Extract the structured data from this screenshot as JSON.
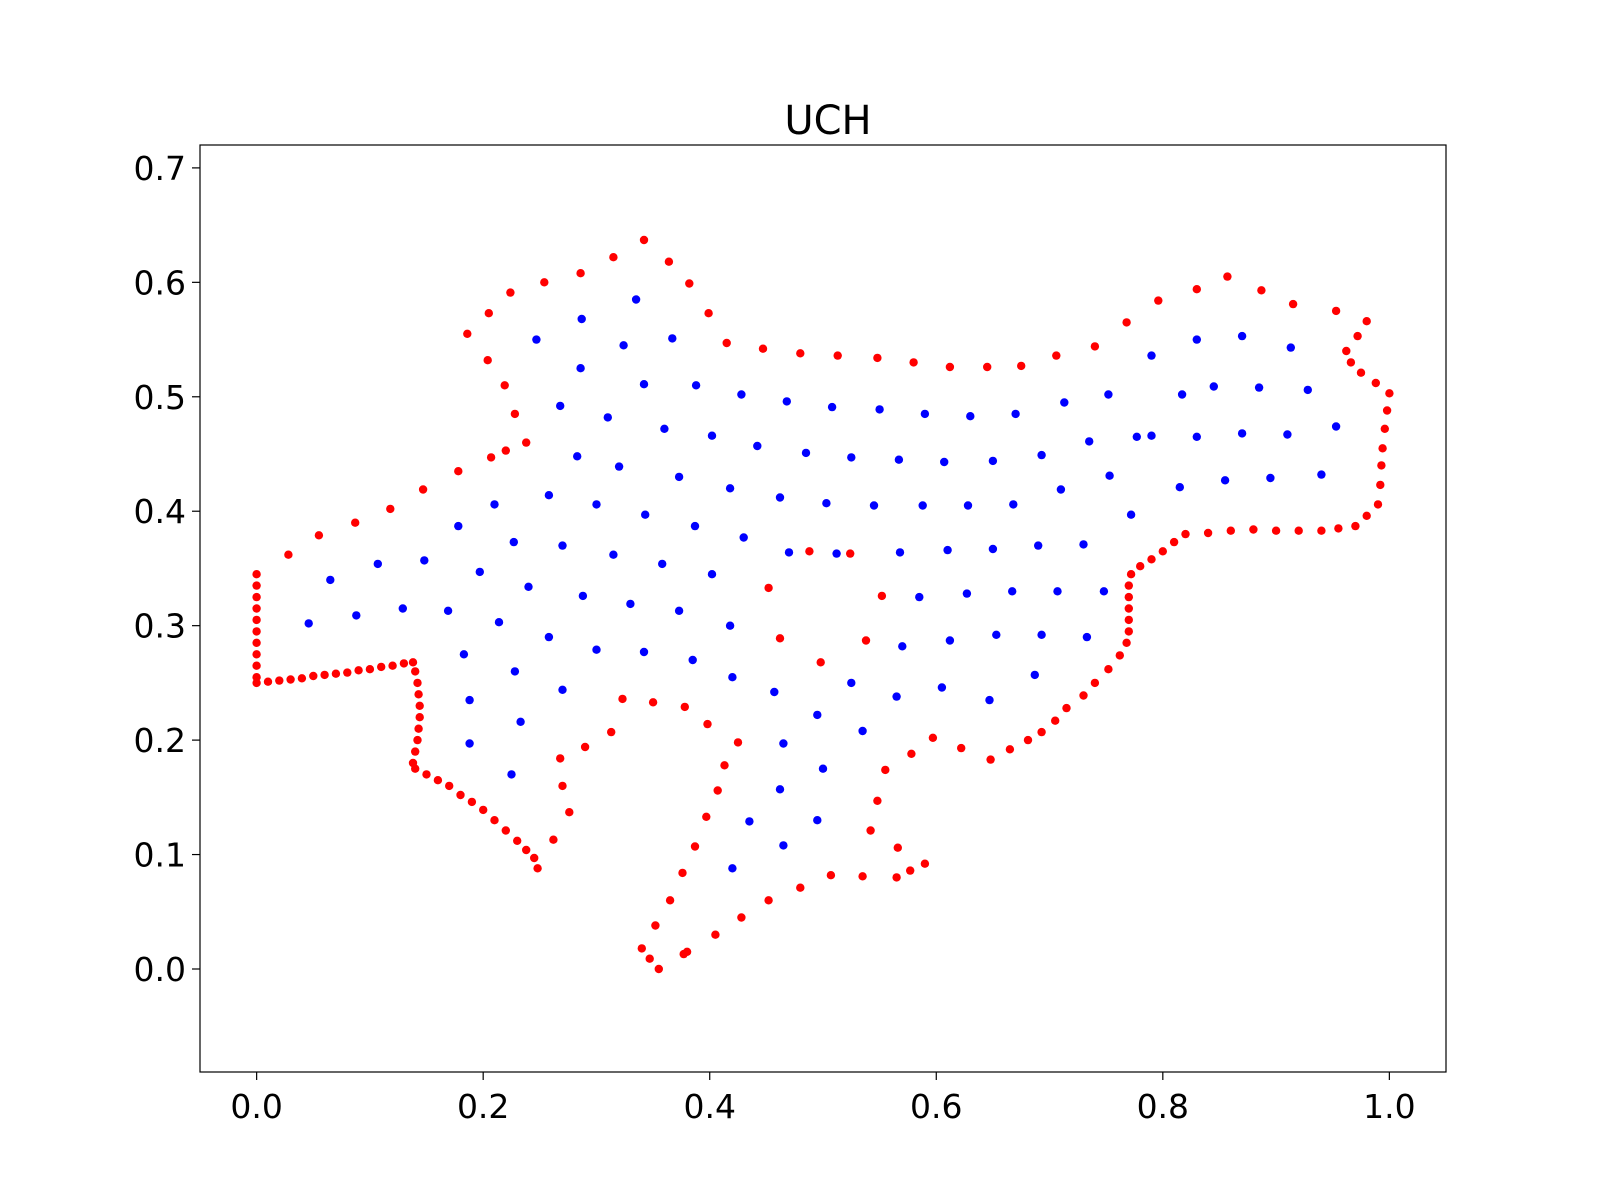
{
  "chart_data": {
    "type": "scatter",
    "title": "UCH",
    "xlabel": "",
    "ylabel": "",
    "xlim": [
      -0.05,
      1.05
    ],
    "ylim": [
      -0.09,
      0.72
    ],
    "xticks": [
      "0.0",
      "0.2",
      "0.4",
      "0.6",
      "0.8",
      "1.0"
    ],
    "yticks": [
      "0.0",
      "0.1",
      "0.2",
      "0.3",
      "0.4",
      "0.5",
      "0.6",
      "0.7"
    ],
    "grid": false,
    "legend": "none",
    "series": [
      {
        "color": "#ff0000",
        "points": [
          [
            0.0,
            0.345
          ],
          [
            0.0,
            0.335
          ],
          [
            0.0,
            0.325
          ],
          [
            0.0,
            0.315
          ],
          [
            0.0,
            0.305
          ],
          [
            0.0,
            0.295
          ],
          [
            0.0,
            0.285
          ],
          [
            0.0,
            0.275
          ],
          [
            0.0,
            0.265
          ],
          [
            0.0,
            0.255
          ],
          [
            0.0,
            0.25
          ],
          [
            0.01,
            0.251
          ],
          [
            0.02,
            0.252
          ],
          [
            0.03,
            0.253
          ],
          [
            0.04,
            0.254
          ],
          [
            0.05,
            0.256
          ],
          [
            0.06,
            0.257
          ],
          [
            0.07,
            0.258
          ],
          [
            0.08,
            0.259
          ],
          [
            0.09,
            0.261
          ],
          [
            0.1,
            0.262
          ],
          [
            0.11,
            0.264
          ],
          [
            0.12,
            0.265
          ],
          [
            0.13,
            0.267
          ],
          [
            0.138,
            0.268
          ],
          [
            0.14,
            0.26
          ],
          [
            0.142,
            0.25
          ],
          [
            0.143,
            0.24
          ],
          [
            0.144,
            0.23
          ],
          [
            0.144,
            0.22
          ],
          [
            0.143,
            0.21
          ],
          [
            0.142,
            0.2
          ],
          [
            0.14,
            0.19
          ],
          [
            0.138,
            0.18
          ],
          [
            0.14,
            0.175
          ],
          [
            0.15,
            0.17
          ],
          [
            0.16,
            0.165
          ],
          [
            0.17,
            0.16
          ],
          [
            0.18,
            0.152
          ],
          [
            0.19,
            0.146
          ],
          [
            0.2,
            0.139
          ],
          [
            0.21,
            0.13
          ],
          [
            0.22,
            0.121
          ],
          [
            0.23,
            0.112
          ],
          [
            0.238,
            0.104
          ],
          [
            0.245,
            0.097
          ],
          [
            0.248,
            0.088
          ],
          [
            0.028,
            0.362
          ],
          [
            0.055,
            0.379
          ],
          [
            0.087,
            0.39
          ],
          [
            0.118,
            0.402
          ],
          [
            0.147,
            0.419
          ],
          [
            0.178,
            0.435
          ],
          [
            0.207,
            0.447
          ],
          [
            0.22,
            0.453
          ],
          [
            0.238,
            0.46
          ],
          [
            0.228,
            0.485
          ],
          [
            0.219,
            0.51
          ],
          [
            0.204,
            0.532
          ],
          [
            0.186,
            0.555
          ],
          [
            0.205,
            0.573
          ],
          [
            0.224,
            0.591
          ],
          [
            0.254,
            0.6
          ],
          [
            0.286,
            0.608
          ],
          [
            0.315,
            0.622
          ],
          [
            0.342,
            0.637
          ],
          [
            0.364,
            0.618
          ],
          [
            0.382,
            0.599
          ],
          [
            0.399,
            0.573
          ],
          [
            0.415,
            0.547
          ],
          [
            0.447,
            0.542
          ],
          [
            0.48,
            0.538
          ],
          [
            0.513,
            0.536
          ],
          [
            0.548,
            0.534
          ],
          [
            0.58,
            0.53
          ],
          [
            0.612,
            0.526
          ],
          [
            0.645,
            0.526
          ],
          [
            0.675,
            0.527
          ],
          [
            0.706,
            0.536
          ],
          [
            0.74,
            0.544
          ],
          [
            0.768,
            0.565
          ],
          [
            0.796,
            0.584
          ],
          [
            0.83,
            0.594
          ],
          [
            0.857,
            0.605
          ],
          [
            0.887,
            0.593
          ],
          [
            0.915,
            0.581
          ],
          [
            0.953,
            0.575
          ],
          [
            0.98,
            0.566
          ],
          [
            0.972,
            0.553
          ],
          [
            0.962,
            0.54
          ],
          [
            0.966,
            0.53
          ],
          [
            0.975,
            0.521
          ],
          [
            0.988,
            0.512
          ],
          [
            1.0,
            0.503
          ],
          [
            0.998,
            0.488
          ],
          [
            0.996,
            0.472
          ],
          [
            0.994,
            0.455
          ],
          [
            0.993,
            0.44
          ],
          [
            0.992,
            0.423
          ],
          [
            0.99,
            0.406
          ],
          [
            0.98,
            0.396
          ],
          [
            0.97,
            0.387
          ],
          [
            0.955,
            0.385
          ],
          [
            0.94,
            0.383
          ],
          [
            0.92,
            0.383
          ],
          [
            0.9,
            0.383
          ],
          [
            0.88,
            0.384
          ],
          [
            0.86,
            0.383
          ],
          [
            0.84,
            0.381
          ],
          [
            0.82,
            0.38
          ],
          [
            0.81,
            0.373
          ],
          [
            0.8,
            0.365
          ],
          [
            0.79,
            0.358
          ],
          [
            0.78,
            0.352
          ],
          [
            0.772,
            0.345
          ],
          [
            0.77,
            0.335
          ],
          [
            0.77,
            0.325
          ],
          [
            0.77,
            0.315
          ],
          [
            0.77,
            0.305
          ],
          [
            0.77,
            0.295
          ],
          [
            0.768,
            0.285
          ],
          [
            0.762,
            0.274
          ],
          [
            0.752,
            0.262
          ],
          [
            0.74,
            0.25
          ],
          [
            0.73,
            0.239
          ],
          [
            0.715,
            0.228
          ],
          [
            0.705,
            0.217
          ],
          [
            0.693,
            0.207
          ],
          [
            0.681,
            0.2
          ],
          [
            0.665,
            0.192
          ],
          [
            0.648,
            0.183
          ],
          [
            0.622,
            0.193
          ],
          [
            0.597,
            0.202
          ],
          [
            0.578,
            0.188
          ],
          [
            0.555,
            0.174
          ],
          [
            0.548,
            0.147
          ],
          [
            0.542,
            0.121
          ],
          [
            0.566,
            0.106
          ],
          [
            0.577,
            0.086
          ],
          [
            0.59,
            0.092
          ],
          [
            0.565,
            0.08
          ],
          [
            0.535,
            0.081
          ],
          [
            0.507,
            0.082
          ],
          [
            0.48,
            0.071
          ],
          [
            0.452,
            0.06
          ],
          [
            0.428,
            0.045
          ],
          [
            0.405,
            0.03
          ],
          [
            0.38,
            0.015
          ],
          [
            0.377,
            0.013
          ],
          [
            0.355,
            0.0
          ],
          [
            0.347,
            0.009
          ],
          [
            0.34,
            0.018
          ],
          [
            0.352,
            0.038
          ],
          [
            0.365,
            0.06
          ],
          [
            0.376,
            0.084
          ],
          [
            0.387,
            0.107
          ],
          [
            0.397,
            0.133
          ],
          [
            0.407,
            0.156
          ],
          [
            0.413,
            0.178
          ],
          [
            0.425,
            0.198
          ],
          [
            0.398,
            0.214
          ],
          [
            0.378,
            0.229
          ],
          [
            0.35,
            0.233
          ],
          [
            0.323,
            0.236
          ],
          [
            0.313,
            0.207
          ],
          [
            0.29,
            0.194
          ],
          [
            0.268,
            0.184
          ],
          [
            0.27,
            0.16
          ],
          [
            0.276,
            0.137
          ],
          [
            0.262,
            0.113
          ],
          [
            0.452,
            0.333
          ],
          [
            0.462,
            0.289
          ],
          [
            0.488,
            0.365
          ],
          [
            0.524,
            0.363
          ],
          [
            0.552,
            0.326
          ],
          [
            0.538,
            0.287
          ],
          [
            0.498,
            0.268
          ]
        ]
      },
      {
        "color": "#0000ff",
        "points": [
          [
            0.247,
            0.55
          ],
          [
            0.287,
            0.568
          ],
          [
            0.335,
            0.585
          ],
          [
            0.367,
            0.551
          ],
          [
            0.324,
            0.545
          ],
          [
            0.286,
            0.525
          ],
          [
            0.342,
            0.511
          ],
          [
            0.388,
            0.51
          ],
          [
            0.428,
            0.502
          ],
          [
            0.468,
            0.496
          ],
          [
            0.508,
            0.491
          ],
          [
            0.55,
            0.489
          ],
          [
            0.59,
            0.485
          ],
          [
            0.63,
            0.483
          ],
          [
            0.67,
            0.485
          ],
          [
            0.713,
            0.495
          ],
          [
            0.752,
            0.502
          ],
          [
            0.79,
            0.536
          ],
          [
            0.83,
            0.55
          ],
          [
            0.87,
            0.553
          ],
          [
            0.913,
            0.543
          ],
          [
            0.268,
            0.492
          ],
          [
            0.31,
            0.482
          ],
          [
            0.36,
            0.472
          ],
          [
            0.402,
            0.466
          ],
          [
            0.442,
            0.457
          ],
          [
            0.485,
            0.451
          ],
          [
            0.525,
            0.447
          ],
          [
            0.567,
            0.445
          ],
          [
            0.607,
            0.443
          ],
          [
            0.65,
            0.444
          ],
          [
            0.693,
            0.449
          ],
          [
            0.735,
            0.461
          ],
          [
            0.777,
            0.465
          ],
          [
            0.817,
            0.502
          ],
          [
            0.845,
            0.509
          ],
          [
            0.885,
            0.508
          ],
          [
            0.928,
            0.506
          ],
          [
            0.283,
            0.448
          ],
          [
            0.32,
            0.439
          ],
          [
            0.373,
            0.43
          ],
          [
            0.418,
            0.42
          ],
          [
            0.462,
            0.412
          ],
          [
            0.503,
            0.407
          ],
          [
            0.545,
            0.405
          ],
          [
            0.588,
            0.405
          ],
          [
            0.628,
            0.405
          ],
          [
            0.668,
            0.406
          ],
          [
            0.71,
            0.419
          ],
          [
            0.753,
            0.431
          ],
          [
            0.79,
            0.466
          ],
          [
            0.83,
            0.465
          ],
          [
            0.87,
            0.468
          ],
          [
            0.91,
            0.467
          ],
          [
            0.953,
            0.474
          ],
          [
            0.21,
            0.406
          ],
          [
            0.258,
            0.414
          ],
          [
            0.3,
            0.406
          ],
          [
            0.343,
            0.397
          ],
          [
            0.387,
            0.387
          ],
          [
            0.43,
            0.377
          ],
          [
            0.47,
            0.364
          ],
          [
            0.512,
            0.363
          ],
          [
            0.568,
            0.364
          ],
          [
            0.61,
            0.366
          ],
          [
            0.65,
            0.367
          ],
          [
            0.69,
            0.37
          ],
          [
            0.73,
            0.371
          ],
          [
            0.772,
            0.397
          ],
          [
            0.815,
            0.421
          ],
          [
            0.855,
            0.427
          ],
          [
            0.895,
            0.429
          ],
          [
            0.94,
            0.432
          ],
          [
            0.178,
            0.387
          ],
          [
            0.227,
            0.373
          ],
          [
            0.27,
            0.37
          ],
          [
            0.315,
            0.362
          ],
          [
            0.358,
            0.354
          ],
          [
            0.402,
            0.345
          ],
          [
            0.107,
            0.354
          ],
          [
            0.148,
            0.357
          ],
          [
            0.065,
            0.34
          ],
          [
            0.197,
            0.347
          ],
          [
            0.24,
            0.334
          ],
          [
            0.288,
            0.326
          ],
          [
            0.33,
            0.319
          ],
          [
            0.373,
            0.313
          ],
          [
            0.418,
            0.3
          ],
          [
            0.585,
            0.325
          ],
          [
            0.627,
            0.328
          ],
          [
            0.667,
            0.33
          ],
          [
            0.707,
            0.33
          ],
          [
            0.748,
            0.33
          ],
          [
            0.046,
            0.302
          ],
          [
            0.088,
            0.309
          ],
          [
            0.129,
            0.315
          ],
          [
            0.169,
            0.313
          ],
          [
            0.214,
            0.303
          ],
          [
            0.258,
            0.29
          ],
          [
            0.3,
            0.279
          ],
          [
            0.342,
            0.277
          ],
          [
            0.385,
            0.27
          ],
          [
            0.57,
            0.282
          ],
          [
            0.612,
            0.287
          ],
          [
            0.653,
            0.292
          ],
          [
            0.693,
            0.292
          ],
          [
            0.733,
            0.29
          ],
          [
            0.183,
            0.275
          ],
          [
            0.228,
            0.26
          ],
          [
            0.27,
            0.244
          ],
          [
            0.42,
            0.255
          ],
          [
            0.457,
            0.242
          ],
          [
            0.495,
            0.222
          ],
          [
            0.535,
            0.208
          ],
          [
            0.525,
            0.25
          ],
          [
            0.565,
            0.238
          ],
          [
            0.605,
            0.246
          ],
          [
            0.647,
            0.235
          ],
          [
            0.687,
            0.257
          ],
          [
            0.188,
            0.235
          ],
          [
            0.233,
            0.216
          ],
          [
            0.188,
            0.197
          ],
          [
            0.225,
            0.17
          ],
          [
            0.465,
            0.197
          ],
          [
            0.5,
            0.175
          ],
          [
            0.462,
            0.157
          ],
          [
            0.495,
            0.13
          ],
          [
            0.435,
            0.129
          ],
          [
            0.465,
            0.108
          ],
          [
            0.42,
            0.088
          ]
        ]
      }
    ]
  }
}
